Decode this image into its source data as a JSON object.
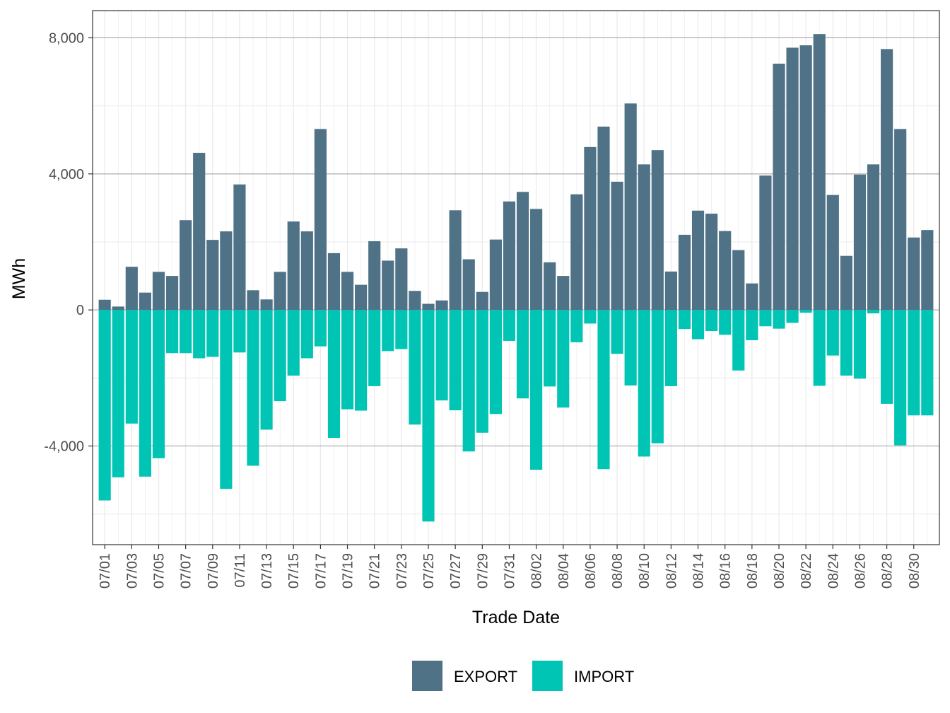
{
  "chart_data": {
    "type": "bar",
    "stacking": "diverging",
    "xlabel": "Trade Date",
    "ylabel": "MWh",
    "ylim": [
      -6900,
      8800
    ],
    "y_ticks": [
      -4000,
      0,
      4000,
      8000
    ],
    "y_tick_labels": [
      "-4,000",
      "0",
      "4,000",
      "8,000"
    ],
    "grid": true,
    "legend_position": "bottom",
    "categories": [
      "07/01",
      "07/02",
      "07/03",
      "07/04",
      "07/05",
      "07/06",
      "07/07",
      "07/08",
      "07/09",
      "07/10",
      "07/11",
      "07/12",
      "07/13",
      "07/14",
      "07/15",
      "07/16",
      "07/17",
      "07/18",
      "07/19",
      "07/20",
      "07/21",
      "07/22",
      "07/23",
      "07/24",
      "07/25",
      "07/26",
      "07/27",
      "07/28",
      "07/29",
      "07/30",
      "07/31",
      "08/01",
      "08/02",
      "08/03",
      "08/04",
      "08/05",
      "08/06",
      "08/07",
      "08/08",
      "08/09",
      "08/10",
      "08/11",
      "08/12",
      "08/13",
      "08/14",
      "08/15",
      "08/16",
      "08/17",
      "08/18",
      "08/19",
      "08/20",
      "08/21",
      "08/22",
      "08/23",
      "08/24",
      "08/25",
      "08/26",
      "08/27",
      "08/28",
      "08/29",
      "08/30",
      "08/31"
    ],
    "x_tick_labels": [
      "07/01",
      "07/03",
      "07/05",
      "07/07",
      "07/09",
      "07/11",
      "07/13",
      "07/15",
      "07/17",
      "07/19",
      "07/21",
      "07/23",
      "07/25",
      "07/27",
      "07/29",
      "07/31",
      "08/02",
      "08/04",
      "08/06",
      "08/08",
      "08/10",
      "08/12",
      "08/14",
      "08/16",
      "08/18",
      "08/20",
      "08/22",
      "08/24",
      "08/26",
      "08/28",
      "08/30"
    ],
    "series": [
      {
        "name": "EXPORT",
        "color": "#4f7287",
        "values": [
          300,
          100,
          1270,
          510,
          1120,
          1000,
          2640,
          4620,
          2060,
          2310,
          3690,
          580,
          310,
          1120,
          2600,
          2310,
          5320,
          1670,
          1120,
          740,
          2020,
          1450,
          1810,
          560,
          180,
          280,
          2930,
          1490,
          530,
          2070,
          3190,
          3470,
          2970,
          1400,
          1000,
          3400,
          4790,
          5390,
          3770,
          6070,
          4280,
          4700,
          1130,
          2210,
          2920,
          2830,
          2320,
          1760,
          780,
          3950,
          7240,
          7710,
          7780,
          8110,
          3380,
          1590,
          3980,
          4280,
          7670,
          5320,
          2130,
          2350
        ]
      },
      {
        "name": "IMPORT",
        "color": "#00c5b4",
        "values": [
          -5600,
          -4920,
          -3340,
          -4900,
          -4360,
          -1270,
          -1270,
          -1420,
          -1380,
          -5260,
          -1250,
          -4580,
          -3520,
          -2680,
          -1930,
          -1420,
          -1070,
          -3760,
          -2920,
          -2960,
          -2240,
          -1210,
          -1150,
          -3370,
          -6220,
          -2660,
          -2950,
          -4160,
          -3610,
          -3060,
          -910,
          -2600,
          -4700,
          -2250,
          -2870,
          -950,
          -400,
          -4680,
          -1290,
          -2220,
          -4310,
          -3920,
          -2240,
          -560,
          -860,
          -620,
          -730,
          -1780,
          -890,
          -480,
          -550,
          -380,
          -80,
          -2230,
          -1340,
          -1930,
          -2020,
          -100,
          -2760,
          -3980,
          -3100,
          -3100
        ]
      }
    ]
  }
}
